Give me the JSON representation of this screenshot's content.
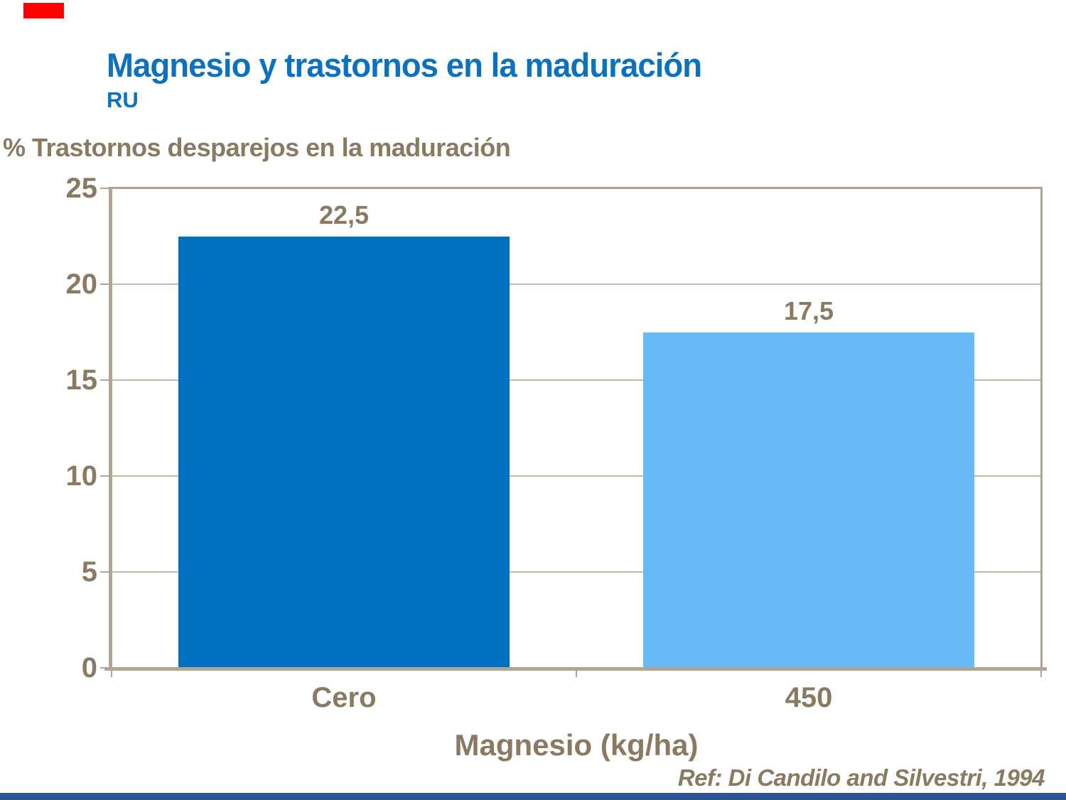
{
  "slide": {
    "title": "Magnesio y trastornos en la maduración",
    "subtitle": "RU",
    "reference": "Ref: Di Candilo and Silvestri, 1994"
  },
  "chart_data": {
    "type": "bar",
    "title": "% Trastornos desparejos en la maduración",
    "categories": [
      "Cero",
      "450"
    ],
    "values": [
      22.5,
      17.5
    ],
    "value_labels": [
      "22,5",
      "17,5"
    ],
    "xlabel": "Magnesio (kg/ha)",
    "ylim": [
      0,
      25
    ],
    "yticks": [
      0,
      5,
      10,
      15,
      20,
      25
    ],
    "grid": "horizontal",
    "legend": "none",
    "bar_colors": [
      "#0070C0",
      "#66BAF8"
    ]
  },
  "decorations": {
    "top_left_accent_color": "#FF0000",
    "bottom_bar_color": "#2F5496"
  },
  "colors": {
    "title_blue": "#0C71BE",
    "label_brown": "#8A7A62",
    "axis_line": "#B2A492",
    "gridline": "#C3B9AA"
  }
}
